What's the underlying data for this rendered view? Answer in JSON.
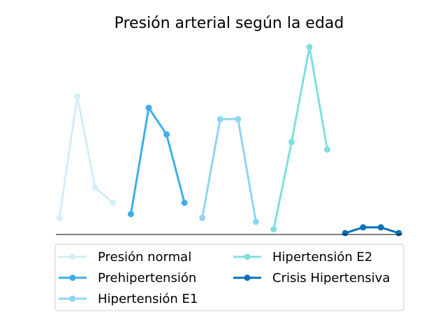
{
  "chart_data": {
    "type": "line",
    "title": "Presión arterial según la edad",
    "xlabel": "",
    "ylabel": "",
    "grid": false,
    "axes_visible": false,
    "legend_placement": "bottom-center",
    "legend_columns": 2,
    "ylim": [
      0,
      100
    ],
    "series": [
      {
        "name": "Presión normal",
        "color": "#d2eef9",
        "x": [
          1,
          2,
          3,
          4
        ],
        "values": [
          8,
          72,
          24,
          16
        ]
      },
      {
        "name": "Prehipertensión",
        "color": "#3daee9",
        "x": [
          5,
          6,
          7,
          8
        ],
        "values": [
          10,
          66,
          52,
          16
        ]
      },
      {
        "name": "Hipertensión E1",
        "color": "#8fd5f2",
        "x": [
          9,
          10,
          11,
          12
        ],
        "values": [
          8,
          60,
          60,
          6
        ]
      },
      {
        "name": "Hipertensión E2",
        "color": "#7fe0dc",
        "x": [
          13,
          14,
          15,
          16
        ],
        "values": [
          2,
          48,
          98,
          44
        ]
      },
      {
        "name": "Crisis Hipertensiva",
        "color": "#0a6fb8",
        "x": [
          17,
          18,
          19,
          20
        ],
        "values": [
          0,
          3,
          3,
          0
        ]
      }
    ]
  }
}
